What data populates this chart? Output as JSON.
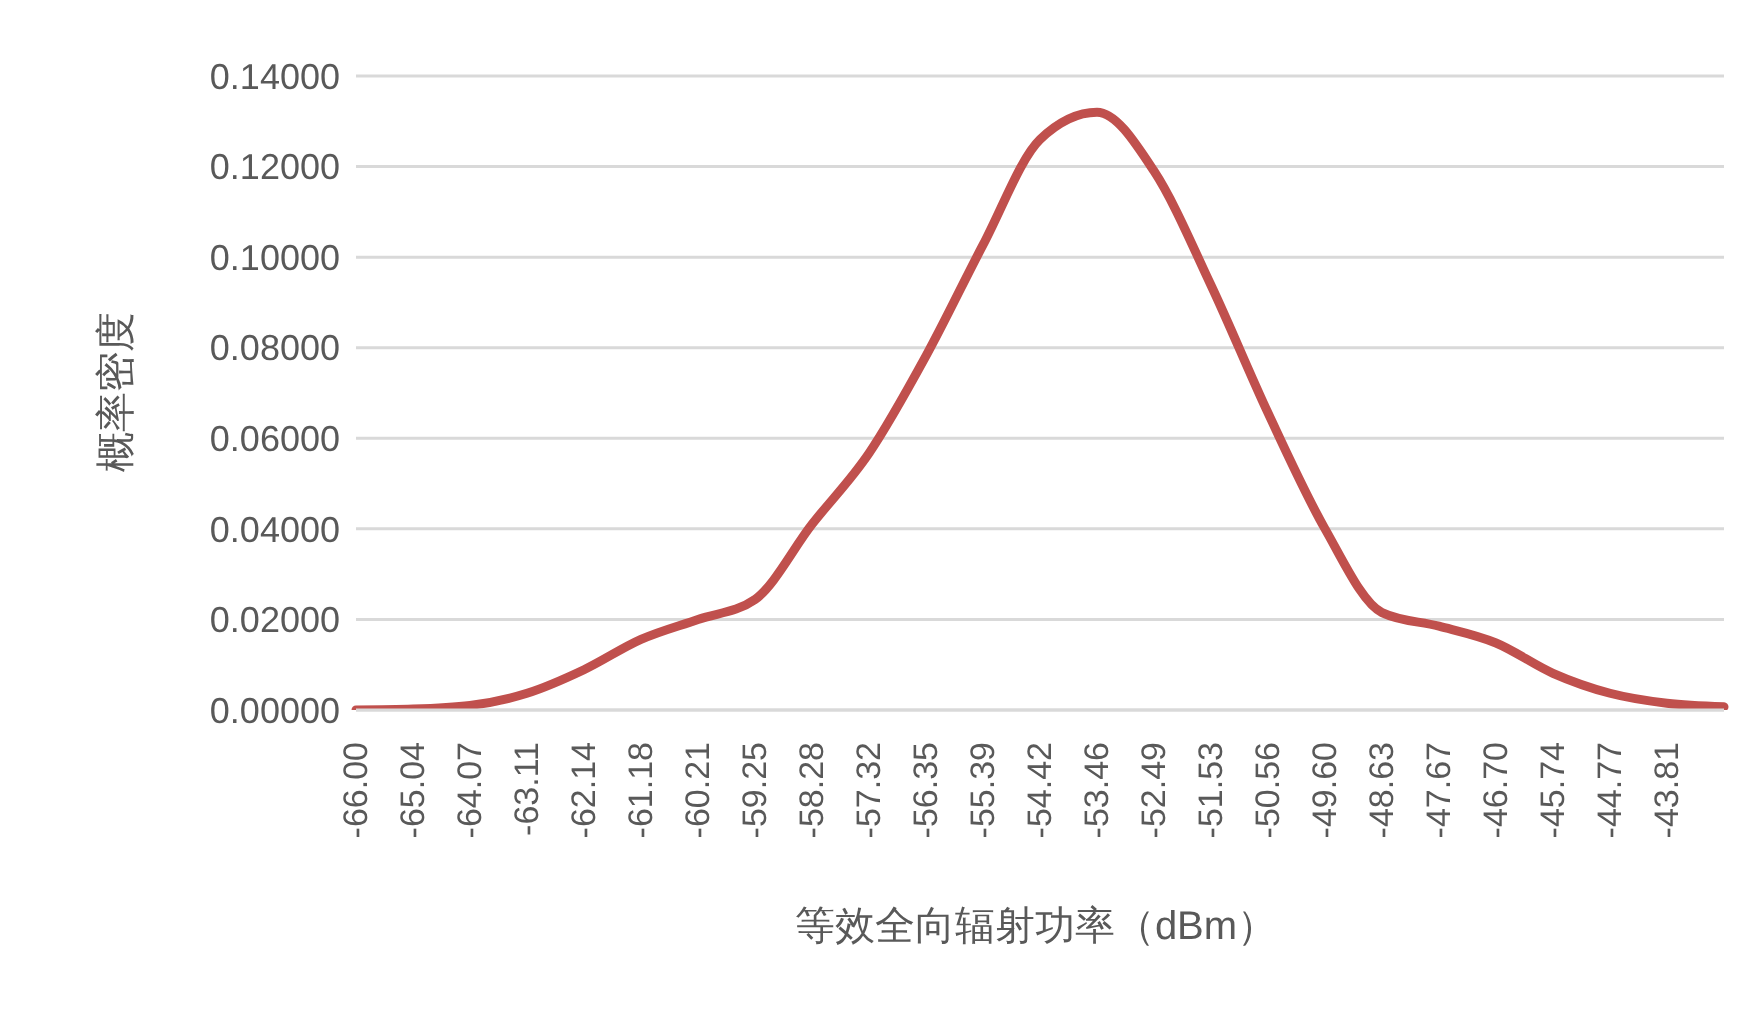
{
  "chart_data": {
    "type": "line",
    "xlabel": "等效全向辐射功率（dBm）",
    "ylabel": "概率密度",
    "categories": [
      "-66.00",
      "-65.04",
      "-64.07",
      "-63.11",
      "-62.14",
      "-61.18",
      "-60.21",
      "-59.25",
      "-58.28",
      "-57.32",
      "-56.35",
      "-55.39",
      "-54.42",
      "-53.46",
      "-52.49",
      "-51.53",
      "-50.56",
      "-49.60",
      "-48.63",
      "-47.67",
      "-46.70",
      "-45.74",
      "-44.77",
      "-43.81",
      null
    ],
    "series": [
      {
        "color": "#c0504d",
        "values": [
          0.0,
          0.0002,
          0.001,
          0.0037,
          0.0089,
          0.0156,
          0.02,
          0.0244,
          0.041,
          0.0567,
          0.0782,
          0.1027,
          0.126,
          0.132,
          0.119,
          0.0938,
          0.0656,
          0.04,
          0.0215,
          0.0185,
          0.0148,
          0.0081,
          0.0037,
          0.0015,
          0.0007
        ]
      }
    ],
    "ylim": [
      0,
      0.14
    ],
    "yticks": [
      {
        "value": 0,
        "label": "0.00000"
      },
      {
        "value": 0.02,
        "label": "0.02000"
      },
      {
        "value": 0.04,
        "label": "0.04000"
      },
      {
        "value": 0.06,
        "label": "0.06000"
      },
      {
        "value": 0.08,
        "label": "0.08000"
      },
      {
        "value": 0.1,
        "label": "0.10000"
      },
      {
        "value": 0.12,
        "label": "0.12000"
      },
      {
        "value": 0.14,
        "label": "0.14000"
      }
    ],
    "grid": "y",
    "marker": "none",
    "line_style": "solid"
  }
}
